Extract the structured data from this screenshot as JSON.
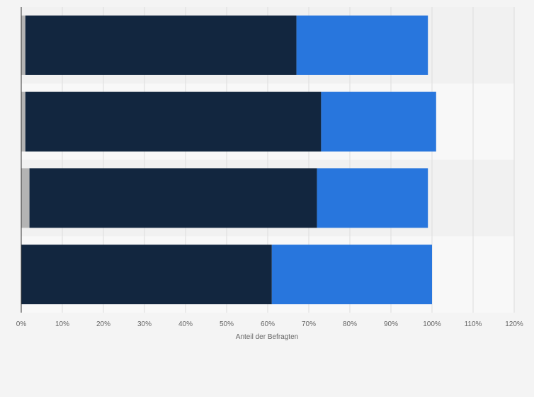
{
  "chart_data": {
    "type": "bar",
    "orientation": "horizontal",
    "stacked": true,
    "categories": [
      "",
      "",
      "",
      ""
    ],
    "series": [
      {
        "color": "#b4b4b4",
        "values": [
          1,
          1,
          2,
          0
        ]
      },
      {
        "color": "#12263f",
        "values": [
          66,
          72,
          70,
          61
        ]
      },
      {
        "color": "#2876dd",
        "values": [
          32,
          28,
          27,
          39
        ]
      }
    ],
    "xlabel": "Anteil der Befragten",
    "xlim": [
      0,
      120
    ],
    "xticks": [
      0,
      10,
      20,
      30,
      40,
      50,
      60,
      70,
      80,
      90,
      100,
      110,
      120
    ],
    "tick_suffix": "%",
    "grid": true,
    "legend": "none"
  }
}
